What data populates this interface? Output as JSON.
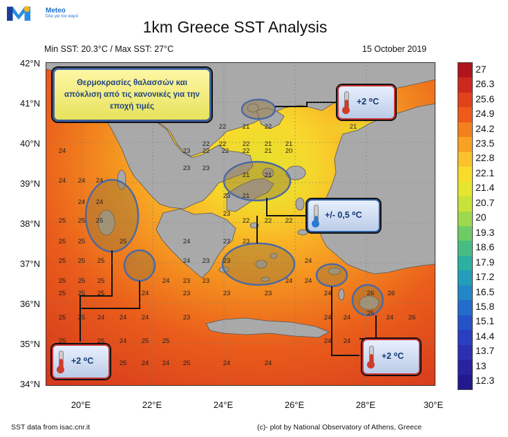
{
  "logo": {
    "brand": "Meteo",
    "tagline": "Όλα για τον καιρό"
  },
  "title": "1km Greece SST Analysis",
  "stats": "Min SST: 20.3°C / Max SST: 27°C",
  "date": "15 October 2019",
  "info_box": "Θερμοκρασίες θαλασσών και απόκλιση από τις κανονικές για την εποχή τιμές",
  "callouts": [
    {
      "id": "ne",
      "label": "+2 ⁰C"
    },
    {
      "id": "center",
      "label": "+/- 0,5 ⁰C"
    },
    {
      "id": "sw",
      "label": "+2 ⁰C"
    },
    {
      "id": "se",
      "label": "+2 ⁰C"
    }
  ],
  "axes": {
    "lat_labels": [
      "42°N",
      "41°N",
      "40°N",
      "39°N",
      "38°N",
      "37°N",
      "36°N",
      "35°N",
      "34°N"
    ],
    "lon_labels": [
      "20°E",
      "22°E",
      "24°E",
      "26°E",
      "28°E",
      "30°E"
    ]
  },
  "colorbar": {
    "labels": [
      "27",
      "26.3",
      "25.6",
      "24.9",
      "24.2",
      "23.5",
      "22.8",
      "22.1",
      "21.4",
      "20.7",
      "20",
      "19.3",
      "18.6",
      "17.9",
      "17.2",
      "16.5",
      "15.8",
      "15.1",
      "14.4",
      "13.7",
      "13",
      "12.3"
    ],
    "colors": [
      "#b0141e",
      "#cc2a1e",
      "#e0431c",
      "#ee5a1a",
      "#f37f1d",
      "#f8a224",
      "#fbc22d",
      "#f8dc2c",
      "#e6e62e",
      "#c8e23a",
      "#9ed84e",
      "#6fcb66",
      "#47bd83",
      "#2db0a1",
      "#239dba",
      "#2386c6",
      "#246ccb",
      "#2553c7",
      "#2a3fbf",
      "#2c2fb2",
      "#2a23a0",
      "#221a8c"
    ]
  },
  "sst_labels": [
    {
      "t": "22"
    },
    {
      "t": "21"
    },
    {
      "t": "22"
    },
    {
      "t": "21"
    },
    {
      "t": "22"
    },
    {
      "t": "22"
    },
    {
      "t": "21"
    },
    {
      "t": "21"
    },
    {
      "t": "22"
    },
    {
      "t": "23"
    },
    {
      "t": "22"
    },
    {
      "t": "22"
    },
    {
      "t": "21"
    },
    {
      "t": "20"
    },
    {
      "t": "22"
    },
    {
      "t": "24"
    },
    {
      "t": "23"
    },
    {
      "t": "23"
    },
    {
      "t": "24"
    },
    {
      "t": "24"
    },
    {
      "t": "24"
    },
    {
      "t": "23"
    },
    {
      "t": "21"
    },
    {
      "t": "21"
    },
    {
      "t": "25"
    },
    {
      "t": "24"
    },
    {
      "t": "23"
    },
    {
      "t": "21"
    },
    {
      "t": "22"
    },
    {
      "t": "25"
    },
    {
      "t": "24"
    },
    {
      "t": "25"
    },
    {
      "t": "22"
    },
    {
      "t": "22"
    },
    {
      "t": "25"
    },
    {
      "t": "25"
    },
    {
      "t": "25"
    },
    {
      "t": "24"
    },
    {
      "t": "23"
    },
    {
      "t": "23"
    },
    {
      "t": "25"
    },
    {
      "t": "25"
    },
    {
      "t": "25"
    },
    {
      "t": "24"
    },
    {
      "t": "23"
    },
    {
      "t": "23"
    },
    {
      "t": "24"
    },
    {
      "t": "25"
    },
    {
      "t": "25"
    },
    {
      "t": "25"
    },
    {
      "t": "24"
    },
    {
      "t": "23"
    },
    {
      "t": "23"
    },
    {
      "t": "24"
    },
    {
      "t": "24"
    },
    {
      "t": "25"
    },
    {
      "t": "25"
    },
    {
      "t": "25"
    },
    {
      "t": "24"
    },
    {
      "t": "23"
    },
    {
      "t": "23"
    },
    {
      "t": "23"
    },
    {
      "t": "24"
    },
    {
      "t": "26"
    },
    {
      "t": "26"
    },
    {
      "t": "25"
    },
    {
      "t": "25"
    },
    {
      "t": "24"
    },
    {
      "t": "24"
    },
    {
      "t": "24"
    },
    {
      "t": "23"
    },
    {
      "t": "24"
    },
    {
      "t": "24"
    },
    {
      "t": "25"
    },
    {
      "t": "24"
    },
    {
      "t": "26"
    },
    {
      "t": "25"
    },
    {
      "t": "25"
    },
    {
      "t": "24"
    },
    {
      "t": "25"
    },
    {
      "t": "25"
    },
    {
      "t": "24"
    },
    {
      "t": "24"
    },
    {
      "t": "25"
    },
    {
      "t": "25"
    },
    {
      "t": "24"
    },
    {
      "t": "24"
    },
    {
      "t": "25"
    },
    {
      "t": "24"
    },
    {
      "t": "24"
    }
  ],
  "footer": {
    "source": "SST data from isac.cnr.it",
    "credit": "(c)- plot by National Observatory of Athens, Greece"
  }
}
